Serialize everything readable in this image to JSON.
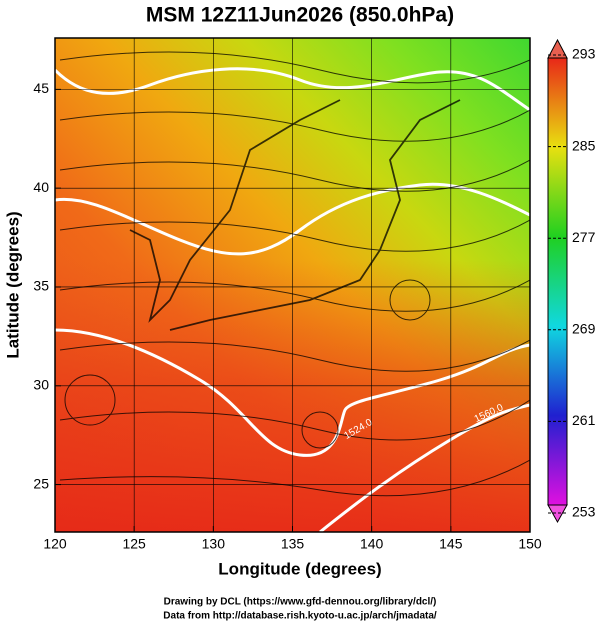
{
  "title": "MSM 12Z11Jun2026 (850.0hPa)",
  "x_axis": {
    "label": "Longitude (degrees)",
    "lim": [
      120,
      150
    ],
    "ticks": [
      120,
      125,
      130,
      135,
      140,
      145,
      150
    ]
  },
  "y_axis": {
    "label": "Latitude  (degrees)",
    "lim": [
      22.6,
      47.6
    ],
    "ticks": [
      25,
      30,
      35,
      40,
      45
    ]
  },
  "colorbar": {
    "lim": [
      253,
      293
    ],
    "ticks": [
      253,
      261,
      269,
      277,
      285,
      293
    ]
  },
  "contour_labels": [
    "1524.0",
    "1560.0"
  ],
  "credits": [
    "Drawing by DCL (https://www.gfd-dennou.org/library/dcl/)",
    "Data from http://database.rish.kyoto-u.ac.jp/arch/jmadata/"
  ]
}
